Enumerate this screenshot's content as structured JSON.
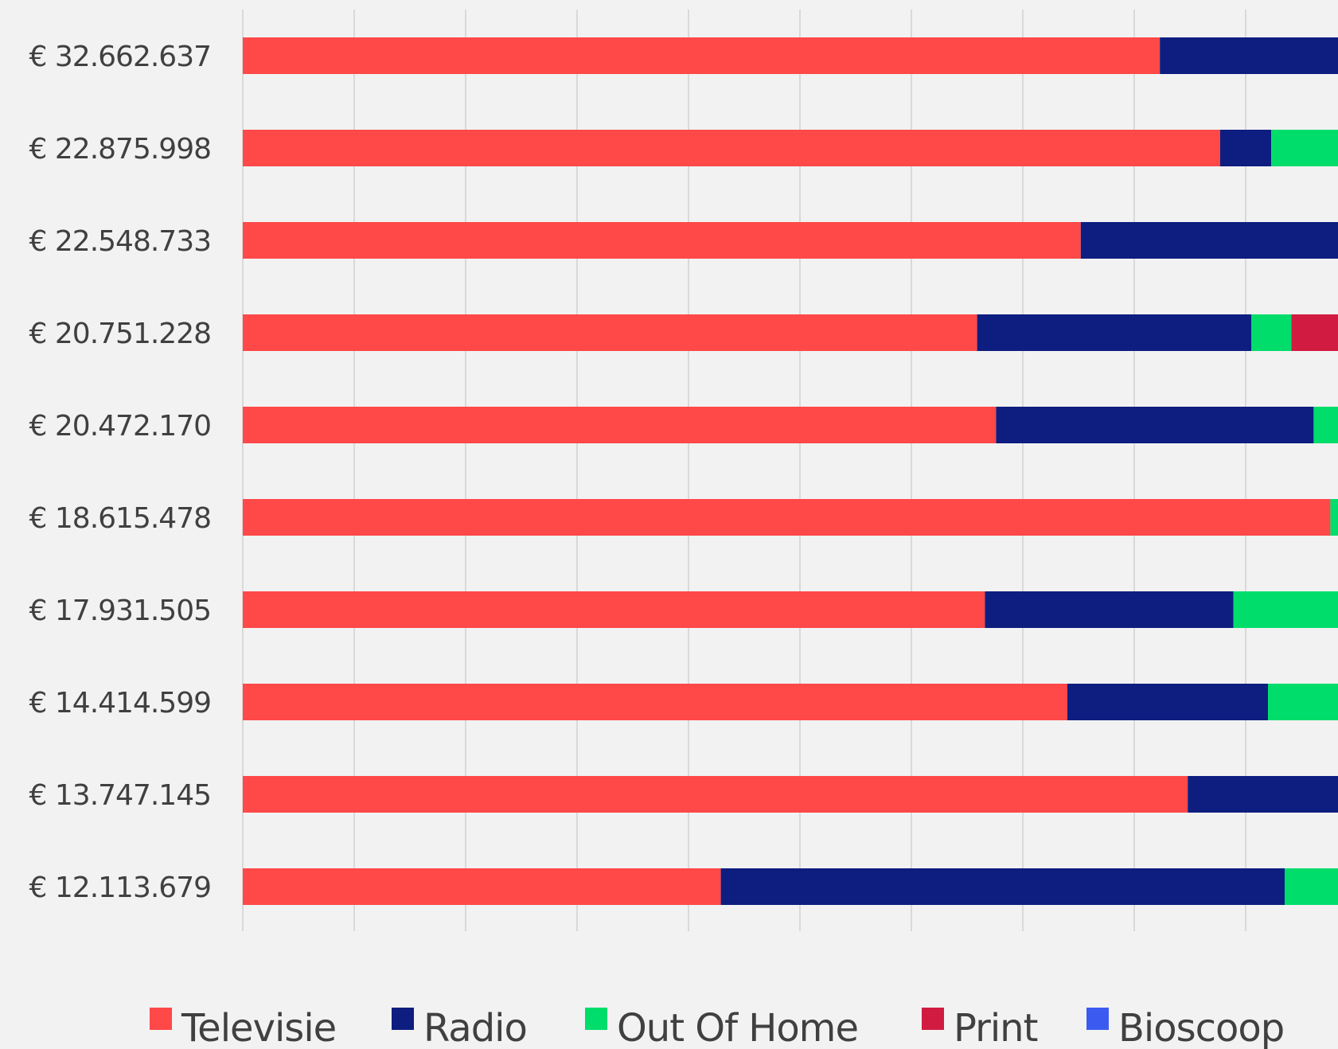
{
  "chart_data": {
    "type": "bar",
    "orientation": "horizontal",
    "stacked": true,
    "percent_stacked": true,
    "title": "",
    "xlabel": "",
    "ylabel": "",
    "xlim": [
      0,
      1
    ],
    "grid": true,
    "legend_position": "bottom",
    "categories": [
      "€ 32.662.637",
      "€ 22.875.998",
      "€ 22.548.733",
      "€ 20.751.228",
      "€ 20.472.170",
      "€ 18.615.478",
      "€ 17.931.505",
      "€ 14.414.599",
      "€ 13.747.145",
      "€ 12.113.679"
    ],
    "series": [
      {
        "name": "Televisie",
        "color": "#ff4848",
        "values": [
          0.823,
          0.877,
          0.752,
          0.659,
          0.676,
          0.976,
          0.666,
          0.74,
          0.848,
          0.429
        ]
      },
      {
        "name": "Radio",
        "color": "#0d1e80",
        "values": [
          0.177,
          0.046,
          0.248,
          0.246,
          0.285,
          0.0,
          0.223,
          0.18,
          0.152,
          0.506
        ]
      },
      {
        "name": "Out Of Home",
        "color": "#00dd6a",
        "values": [
          0.0,
          0.077,
          0.0,
          0.036,
          0.039,
          0.024,
          0.111,
          0.08,
          0.0,
          0.065
        ]
      },
      {
        "name": "Print",
        "color": "#d21b40",
        "values": [
          0.0,
          0.0,
          0.0,
          0.059,
          0.0,
          0.0,
          0.0,
          0.0,
          0.0,
          0.0
        ]
      },
      {
        "name": "Bioscoop",
        "color": "#3b5bf0",
        "values": [
          0.0,
          0.0,
          0.0,
          0.0,
          0.0,
          0.0,
          0.0,
          0.0,
          0.0,
          0.0
        ]
      }
    ]
  }
}
